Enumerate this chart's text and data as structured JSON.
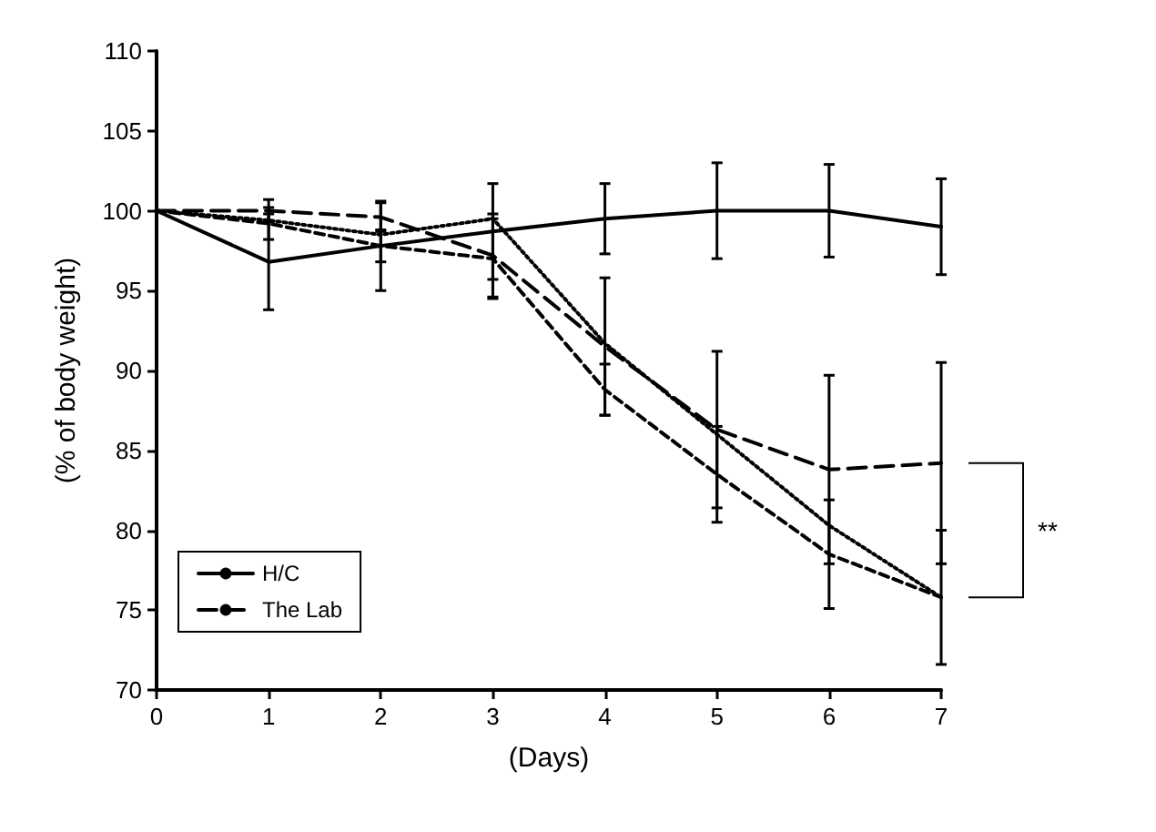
{
  "chart_data": {
    "type": "line",
    "xlabel": "(Days)",
    "ylabel": "(% of body weight)",
    "x": [
      0,
      1,
      2,
      3,
      4,
      5,
      6,
      7
    ],
    "series": [
      {
        "name": "H/C",
        "color": "#000000",
        "line_style": "solid",
        "values": [
          100,
          96.8,
          97.8,
          98.7,
          99.5,
          100,
          100,
          99
        ],
        "errors": [
          null,
          3,
          2.8,
          3,
          2.2,
          3,
          2.9,
          3
        ]
      },
      {
        "color": "#000000",
        "line_style": "dashed",
        "values": [
          100,
          99.2,
          97.8,
          97,
          88.8,
          83.5,
          78.5,
          75.8
        ],
        "errors": [
          null,
          1,
          1,
          2.5,
          1.6,
          3,
          3.4,
          4.2
        ]
      },
      {
        "color": "#000000",
        "line_style": "dotted",
        "values": [
          100,
          99.4,
          98.5,
          99.5,
          91.7,
          86,
          80.3,
          75.8
        ],
        "errors": [
          null,
          null,
          null,
          null,
          null,
          null,
          null,
          null
        ]
      },
      {
        "name": "The Lab",
        "color": "#000000",
        "line_style": "longdash",
        "values": [
          100,
          100,
          99.6,
          97.2,
          91.5,
          86.3,
          83.8,
          84.2
        ],
        "errors": [
          null,
          0.7,
          0.9,
          2.6,
          4.3,
          4.9,
          5.9,
          6.3
        ]
      }
    ],
    "xlim": [
      0,
      7
    ],
    "xticks": [
      0,
      1,
      2,
      3,
      4,
      5,
      6,
      7
    ],
    "ylim": [
      70,
      110
    ],
    "yticks": [
      70,
      75,
      80,
      85,
      90,
      95,
      100,
      105,
      110
    ],
    "grid": false,
    "legend": "bottom left",
    "marker": "none",
    "annotations": [
      "**"
    ]
  }
}
